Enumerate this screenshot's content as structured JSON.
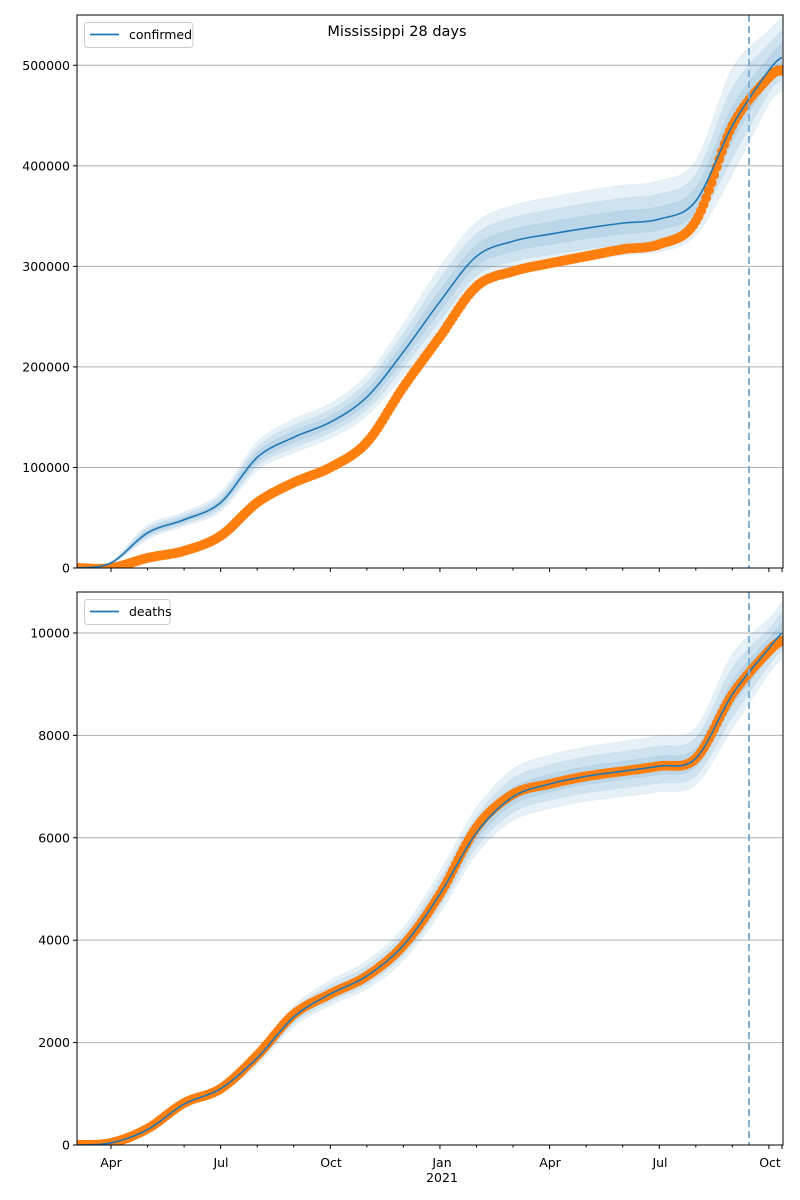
{
  "chart_data": [
    {
      "type": "line",
      "title": "Mississippi 28 days",
      "legend": [
        "confirmed"
      ],
      "legend_position": "top-left",
      "ylim": [
        0,
        550000
      ],
      "yticks": [
        0,
        100000,
        200000,
        300000,
        400000,
        500000
      ],
      "ytick_labels": [
        "0",
        "100000",
        "200000",
        "300000",
        "400000",
        "500000"
      ],
      "grid": "y",
      "x_months": [
        0,
        1,
        2,
        3,
        4,
        5,
        6,
        7,
        8,
        9,
        10,
        11,
        12,
        13,
        14,
        15,
        16,
        17,
        18,
        19,
        19.35
      ],
      "model": [
        0,
        5000,
        35000,
        48000,
        65000,
        110000,
        130000,
        145000,
        170000,
        215000,
        265000,
        310000,
        325000,
        332000,
        338000,
        343000,
        347000,
        365000,
        440000,
        495000,
        508000
      ],
      "observed": [
        0,
        0,
        10000,
        17000,
        32000,
        65000,
        85000,
        100000,
        125000,
        180000,
        230000,
        280000,
        295000,
        303000,
        310000,
        317000,
        322000,
        345000,
        440000,
        488000,
        495000
      ],
      "band_spread": [
        0.0,
        0.35,
        0.22,
        0.16,
        0.16,
        0.14,
        0.14,
        0.13,
        0.13,
        0.13,
        0.13,
        0.11,
        0.11,
        0.11,
        0.11,
        0.11,
        0.11,
        0.11,
        0.13,
        0.08,
        0.08
      ]
    },
    {
      "type": "line",
      "legend": [
        "deaths"
      ],
      "legend_position": "top-left",
      "ylim": [
        0,
        10800
      ],
      "yticks": [
        0,
        2000,
        4000,
        6000,
        8000,
        10000
      ],
      "ytick_labels": [
        "0",
        "2000",
        "4000",
        "6000",
        "8000",
        "10000"
      ],
      "grid": "y",
      "x_months": [
        0,
        1,
        2,
        3,
        4,
        5,
        6,
        7,
        8,
        9,
        10,
        11,
        12,
        13,
        14,
        15,
        16,
        17,
        18,
        19,
        19.35
      ],
      "model": [
        0,
        40,
        300,
        800,
        1100,
        1700,
        2500,
        2950,
        3300,
        3900,
        4900,
        6100,
        6800,
        7050,
        7200,
        7300,
        7400,
        7550,
        8800,
        9700,
        10000
      ],
      "observed": [
        0,
        40,
        320,
        820,
        1100,
        1750,
        2550,
        2950,
        3300,
        3900,
        4900,
        6200,
        6850,
        7050,
        7200,
        7300,
        7400,
        7550,
        8800,
        9650,
        9850
      ],
      "band_spread": [
        0.0,
        0.3,
        0.15,
        0.1,
        0.1,
        0.1,
        0.09,
        0.09,
        0.09,
        0.09,
        0.09,
        0.08,
        0.08,
        0.08,
        0.08,
        0.08,
        0.08,
        0.08,
        0.09,
        0.06,
        0.06
      ]
    }
  ],
  "x_axis": {
    "tick_labels": [
      "Apr",
      "Jul",
      "Oct",
      "Jan",
      "Apr",
      "Jul",
      "Oct"
    ],
    "tick_months": [
      0.55,
      3.55,
      6.55,
      9.55,
      12.55,
      15.55,
      18.55
    ],
    "year_label": "2021",
    "forecast_marker_month": 17.97
  },
  "colors": {
    "model": "#1f77b4",
    "observed": "#ff7f0e",
    "band": "#1f77b4",
    "grid": "#b0b0b0",
    "forecast_line": "#7fb1d8"
  }
}
